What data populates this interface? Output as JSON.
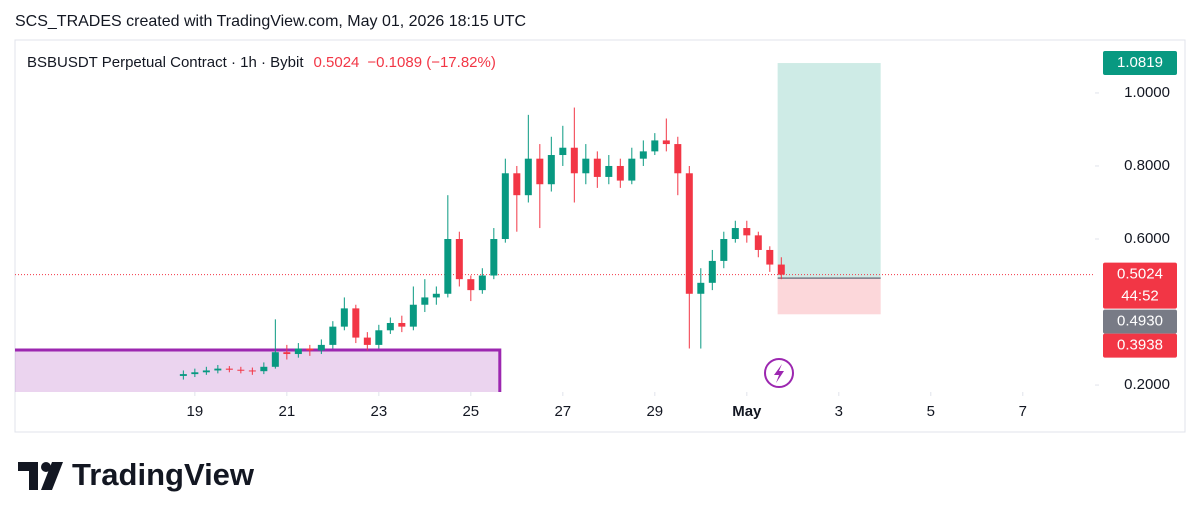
{
  "header": "SCS_TRADES created with TradingView.com, May 01, 2026 18:15 UTC",
  "chart_data": {
    "type": "candlestick",
    "title": "BSBUSDT Perpetual Contract · 1h · Bybit",
    "last_price": 0.5024,
    "change": {
      "value": -0.1089,
      "label": "−0.1089 (−17.82%)"
    },
    "countdown": "44:52",
    "x": [
      -0.25,
      0,
      0.25,
      0.5,
      0.75,
      1,
      1.25,
      1.5,
      1.75,
      2,
      2.25,
      2.5,
      2.75,
      3,
      3.25,
      3.5,
      3.75,
      4,
      4.25,
      4.5,
      4.75,
      5,
      5.25,
      5.5,
      5.75,
      6,
      6.25,
      6.5,
      6.75,
      7,
      7.25,
      7.5,
      7.75,
      8,
      8.25,
      8.5,
      8.75,
      9,
      9.25,
      9.5,
      9.75,
      10,
      10.25,
      10.5,
      10.75,
      11,
      11.25,
      11.5,
      11.75,
      12,
      12.25,
      12.5,
      12.75
    ],
    "open": [
      0.225,
      0.23,
      0.235,
      0.24,
      0.245,
      0.242,
      0.24,
      0.238,
      0.25,
      0.29,
      0.285,
      0.3,
      0.295,
      0.31,
      0.36,
      0.41,
      0.33,
      0.31,
      0.35,
      0.37,
      0.36,
      0.42,
      0.44,
      0.45,
      0.6,
      0.49,
      0.46,
      0.5,
      0.6,
      0.78,
      0.72,
      0.82,
      0.75,
      0.83,
      0.85,
      0.78,
      0.82,
      0.77,
      0.8,
      0.76,
      0.82,
      0.84,
      0.87,
      0.86,
      0.78,
      0.45,
      0.48,
      0.54,
      0.6,
      0.63,
      0.61,
      0.57,
      0.53
    ],
    "high": [
      0.24,
      0.245,
      0.25,
      0.255,
      0.252,
      0.25,
      0.248,
      0.262,
      0.38,
      0.31,
      0.315,
      0.31,
      0.325,
      0.375,
      0.44,
      0.42,
      0.345,
      0.365,
      0.385,
      0.39,
      0.47,
      0.49,
      0.47,
      0.72,
      0.62,
      0.5,
      0.52,
      0.63,
      0.82,
      0.8,
      0.94,
      0.86,
      0.88,
      0.91,
      0.96,
      0.86,
      0.84,
      0.83,
      0.82,
      0.85,
      0.87,
      0.89,
      0.93,
      0.88,
      0.8,
      0.52,
      0.57,
      0.62,
      0.65,
      0.65,
      0.62,
      0.58,
      0.55
    ],
    "low": [
      0.215,
      0.222,
      0.228,
      0.232,
      0.235,
      0.232,
      0.228,
      0.23,
      0.245,
      0.27,
      0.275,
      0.28,
      0.285,
      0.3,
      0.35,
      0.315,
      0.295,
      0.3,
      0.34,
      0.345,
      0.35,
      0.4,
      0.42,
      0.44,
      0.47,
      0.43,
      0.45,
      0.49,
      0.59,
      0.62,
      0.7,
      0.63,
      0.73,
      0.8,
      0.7,
      0.75,
      0.74,
      0.75,
      0.74,
      0.75,
      0.8,
      0.83,
      0.84,
      0.72,
      0.3,
      0.3,
      0.46,
      0.52,
      0.59,
      0.59,
      0.55,
      0.51,
      0.49
    ],
    "close": [
      0.23,
      0.235,
      0.24,
      0.245,
      0.242,
      0.24,
      0.238,
      0.25,
      0.29,
      0.285,
      0.3,
      0.295,
      0.31,
      0.36,
      0.41,
      0.33,
      0.31,
      0.35,
      0.37,
      0.36,
      0.42,
      0.44,
      0.45,
      0.6,
      0.49,
      0.46,
      0.5,
      0.6,
      0.78,
      0.72,
      0.82,
      0.75,
      0.83,
      0.85,
      0.78,
      0.82,
      0.77,
      0.8,
      0.76,
      0.82,
      0.84,
      0.87,
      0.86,
      0.78,
      0.45,
      0.48,
      0.54,
      0.6,
      0.63,
      0.61,
      0.57,
      0.53,
      0.5024
    ],
    "xlim": [
      -3.91,
      19.57
    ],
    "xticks": [
      {
        "value": 0,
        "label": "19"
      },
      {
        "value": 2,
        "label": "21"
      },
      {
        "value": 4,
        "label": "23"
      },
      {
        "value": 6,
        "label": "25"
      },
      {
        "value": 8,
        "label": "27"
      },
      {
        "value": 10,
        "label": "29"
      },
      {
        "value": 12,
        "label": "May"
      },
      {
        "value": 14,
        "label": "3"
      },
      {
        "value": 16,
        "label": "5"
      },
      {
        "value": 18,
        "label": "7"
      }
    ],
    "ylim": [
      0.181,
      1.145
    ],
    "yticks": [
      {
        "value": 0.2,
        "label": "0.2000"
      },
      {
        "value": 0.6,
        "label": "0.6000"
      },
      {
        "value": 0.8,
        "label": "0.8000"
      },
      {
        "value": 1,
        "label": "1.0000"
      }
    ],
    "up_color": "#089981",
    "down_color": "#f23645",
    "position": {
      "x": [
        12.67,
        14.91
      ],
      "target": {
        "value": 1.0819,
        "label": "1.0819"
      },
      "entry": {
        "value": 0.493,
        "label": "0.4930"
      },
      "stop": {
        "value": 0.3938,
        "label": "0.3938"
      }
    },
    "zone": {
      "x": [
        -3.91,
        6.63
      ],
      "top": 0.296,
      "color": "#9c27b0"
    }
  },
  "logo": "TradingView"
}
